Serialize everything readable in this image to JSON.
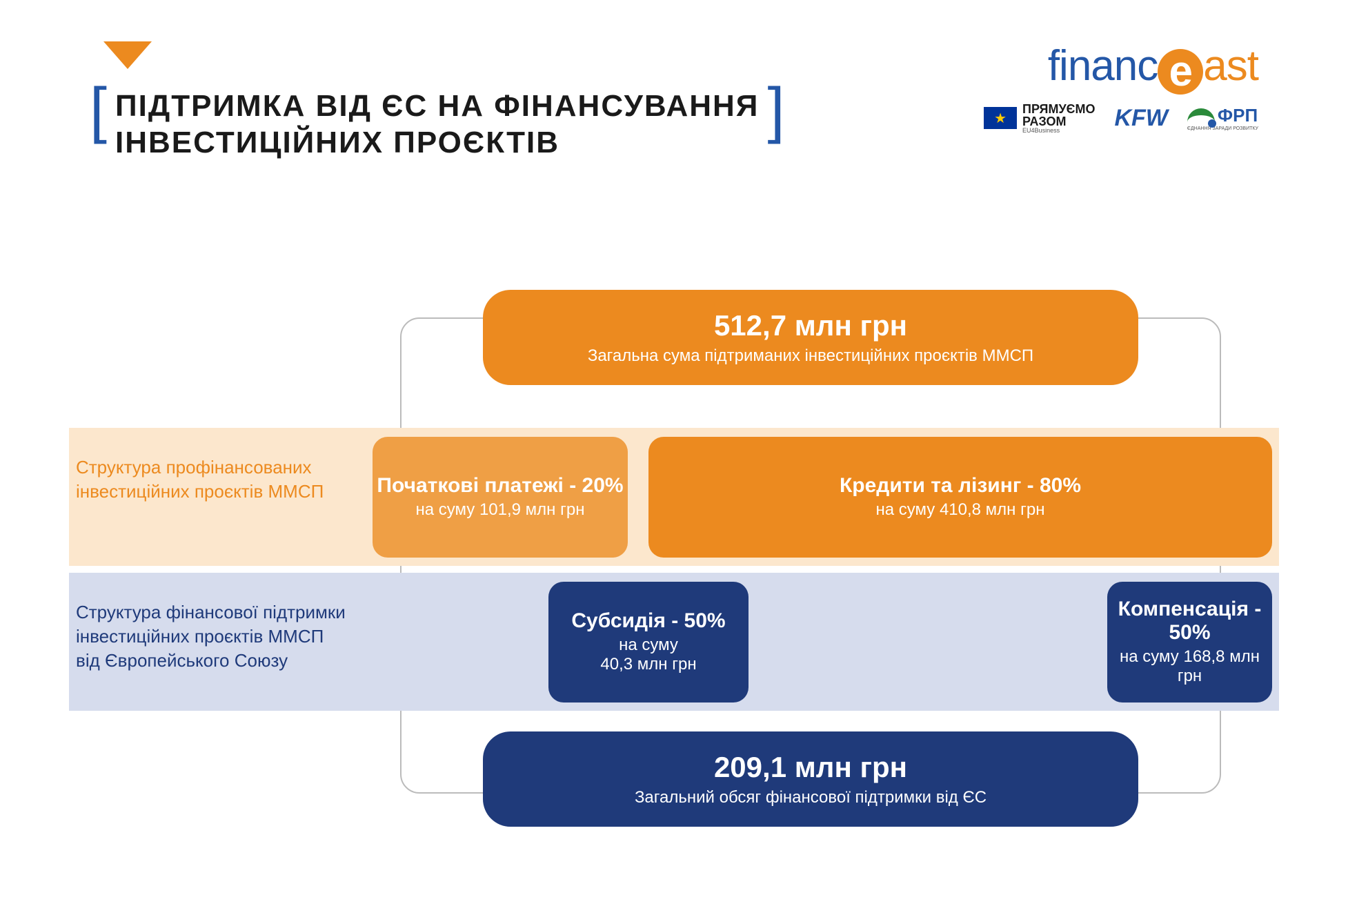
{
  "title_line1": "ПІДТРИМКА ВІД ЄС НА ФІНАНСУВАННЯ",
  "title_line2": "ІНВЕСТИЦІЙНИХ ПРОЄКТІВ",
  "logos": {
    "financeast_prefix": "financ",
    "financeast_e": "e",
    "financeast_suffix": "ast",
    "eu_top": "ПРЯМУЄМО",
    "eu_bottom": "РАЗОМ",
    "eu_small": "EU4Business",
    "kfw": "KFW",
    "frp": "ФРП",
    "frp_sub": "ЄДНАННЯ ЗАРАДИ РОЗВИТКУ"
  },
  "colors": {
    "orange": "#ec8a1f",
    "orange_light": "#ef9f45",
    "orange_bg": "#fce7cd",
    "navy": "#1f3a7a",
    "navy_bg": "#d6dced",
    "blue": "#2457a7"
  },
  "top": {
    "value": "512,7 млн грн",
    "label": "Загальна сума підтриманих інвестиційних проєктів ММСП"
  },
  "row1": {
    "label": "Структура профінансованих інвестиційних проєктів ММСП",
    "a_title": "Початкові платежі - 20%",
    "a_sub": "на суму 101,9 млн грн",
    "b_title": "Кредити та лізинг - 80%",
    "b_sub": "на суму 410,8 млн грн"
  },
  "row2": {
    "label": "Структура фінансової підтримки інвестиційних проєктів ММСП від Європейського Союзу",
    "a_title": "Субсидія - 50%",
    "a_sub1": "на суму",
    "a_sub2": "40,3 млн грн",
    "b_title": "Компенсація - 50%",
    "b_sub": "на суму 168,8 млн грн"
  },
  "bottom": {
    "value": "209,1 млн грн",
    "label": "Загальний обсяг фінансової підтримки від ЄС"
  }
}
